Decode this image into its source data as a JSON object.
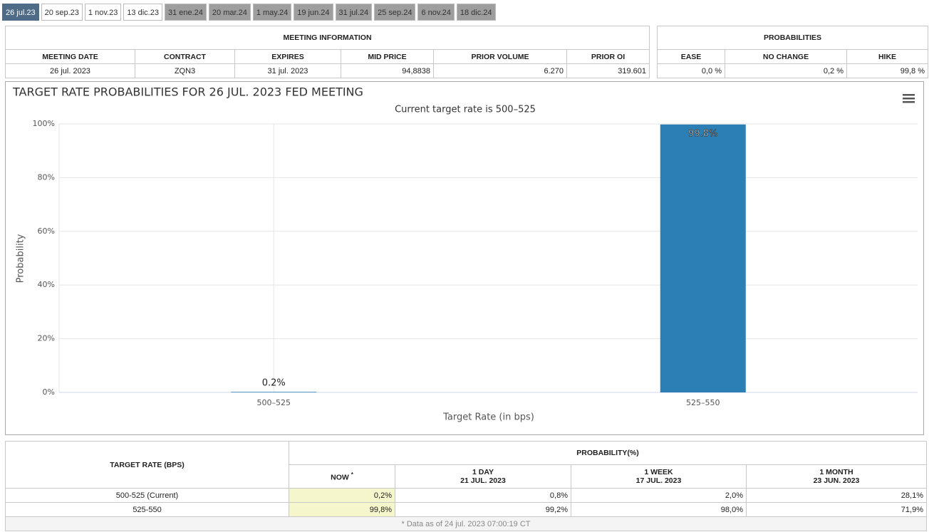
{
  "tabs": [
    "26 jul.23",
    "20 sep.23",
    "1 nov.23",
    "13 dic.23",
    "31 ene.24",
    "20 mar.24",
    "1 may.24",
    "19 jun.24",
    "31 jul.24",
    "25 sep.24",
    "6 nov.24",
    "18 dic.24"
  ],
  "meeting_information": {
    "title": "MEETING INFORMATION",
    "headers": [
      "MEETING DATE",
      "CONTRACT",
      "EXPIRES",
      "MID PRICE",
      "PRIOR VOLUME",
      "PRIOR OI"
    ],
    "row": [
      "26 jul. 2023",
      "ZQN3",
      "31 jul. 2023",
      "94,8838",
      "6.270",
      "319.601"
    ]
  },
  "probabilities": {
    "title": "PROBABILITIES",
    "headers": [
      "EASE",
      "NO CHANGE",
      "HIKE"
    ],
    "row": [
      "0,0 %",
      "0,2 %",
      "99,8 %"
    ]
  },
  "chart_data": {
    "type": "bar",
    "title": "TARGET RATE PROBABILITIES FOR 26 JUL. 2023 FED MEETING",
    "subtitle": "Current target rate is 500–525",
    "x_label": "Target Rate (in bps)",
    "y_label": "Probability",
    "categories": [
      "500–525",
      "525–550"
    ],
    "values": [
      0.2,
      99.8
    ],
    "value_labels": [
      "0.2%",
      "99.8%"
    ],
    "color": "#2b7fb5",
    "ylim": [
      0,
      100
    ],
    "yticks": [
      {
        "value": 0,
        "label": "0%"
      },
      {
        "value": 20,
        "label": "20%"
      },
      {
        "value": 40,
        "label": "40%"
      },
      {
        "value": 60,
        "label": "60%"
      },
      {
        "value": 80,
        "label": "80%"
      },
      {
        "value": 100,
        "label": "100%"
      }
    ],
    "grid": true
  },
  "probability_table": {
    "row_header": "TARGET RATE (BPS)",
    "title": "PROBABILITY(%)",
    "columns": [
      {
        "label": "NOW",
        "note": "*"
      },
      {
        "label": "1 DAY",
        "date": "21 JUL. 2023"
      },
      {
        "label": "1 WEEK",
        "date": "17 JUL. 2023"
      },
      {
        "label": "1 MONTH",
        "date": "23 JUN. 2023"
      }
    ],
    "rows": [
      [
        "500-525 (Current)",
        "0,2%",
        "0,8%",
        "2,0%",
        "28,1%"
      ],
      [
        "525-550",
        "99,8%",
        "99,2%",
        "98,0%",
        "71,9%"
      ]
    ],
    "footnote": "* Data as of 24 jul. 2023 07:00:19 CT"
  }
}
